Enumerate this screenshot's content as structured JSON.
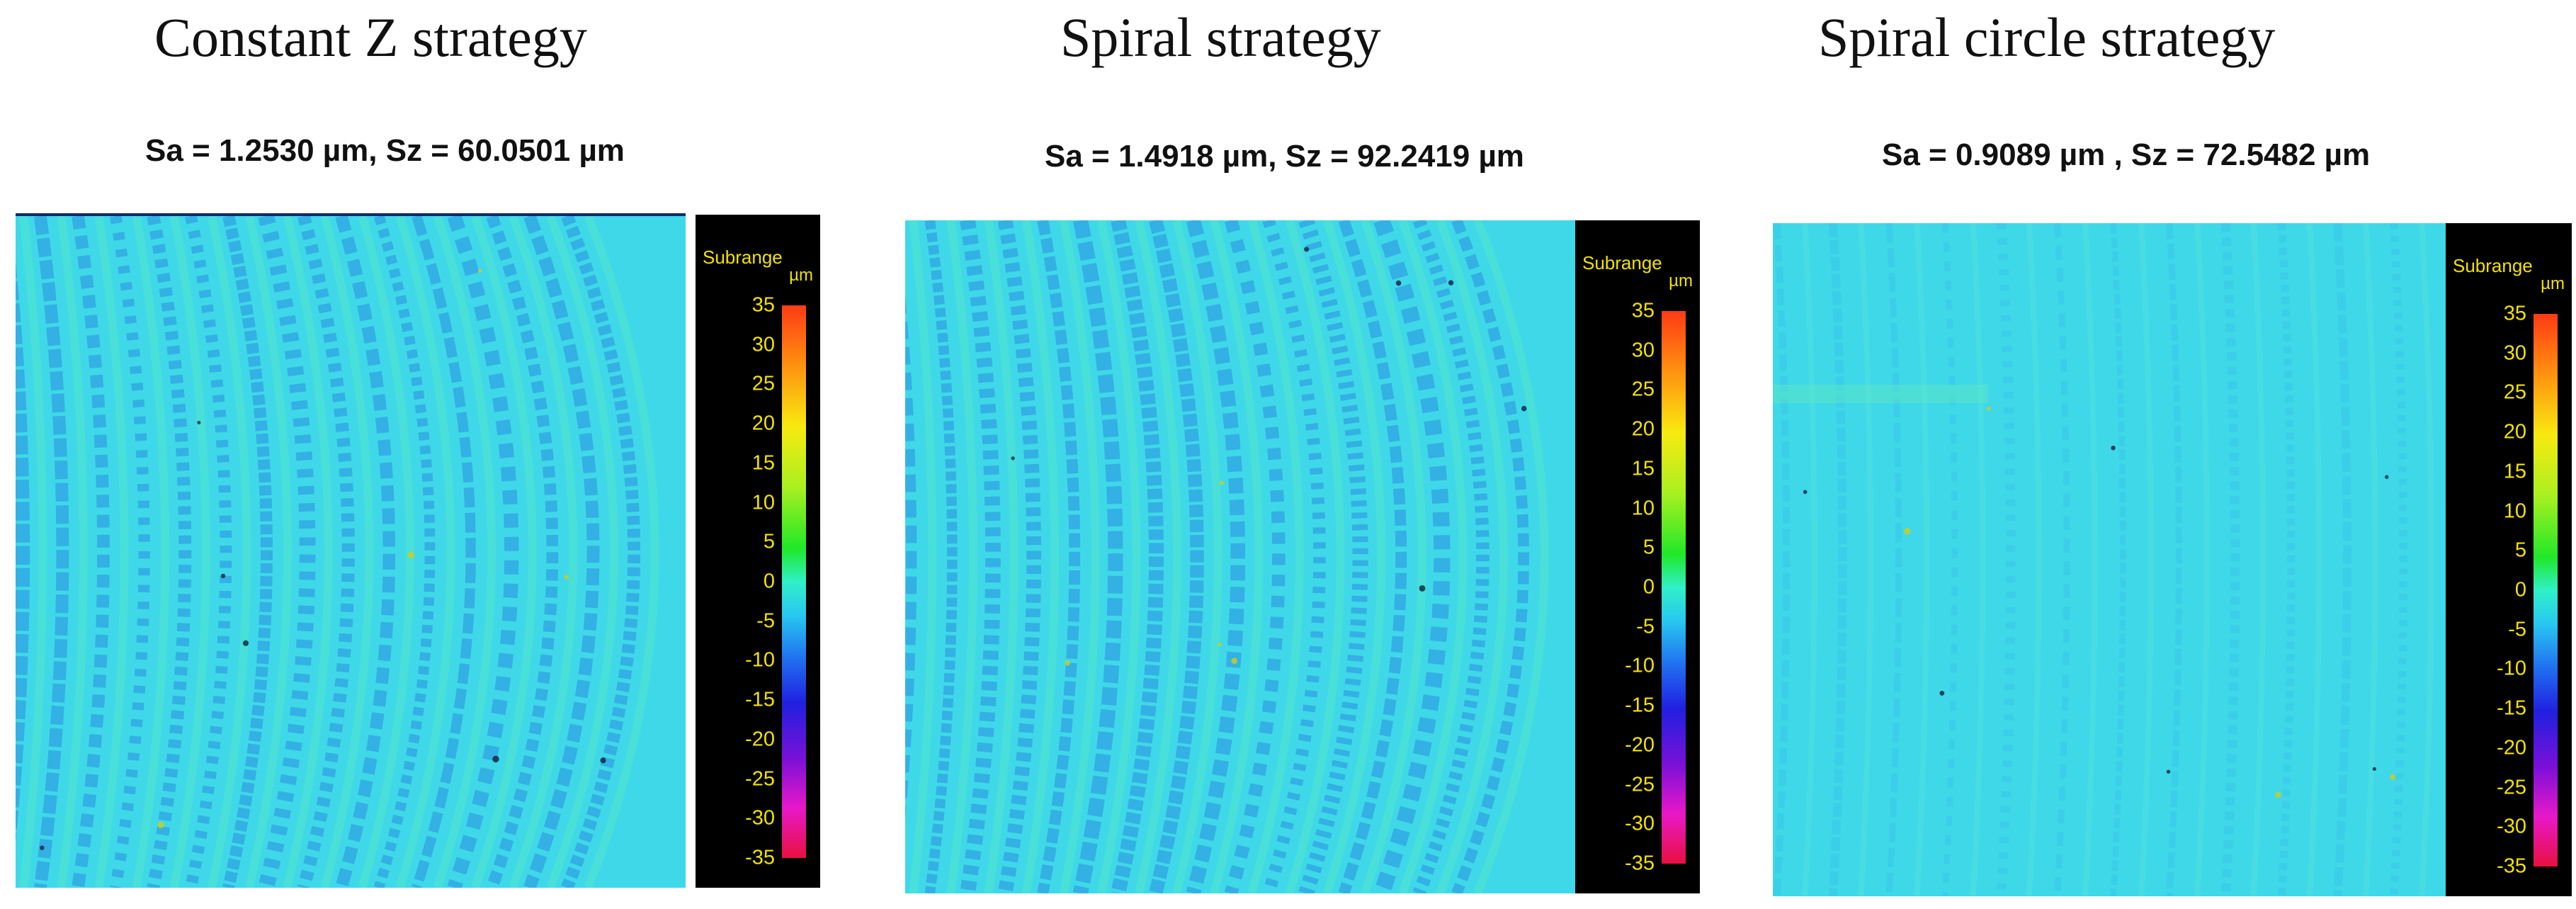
{
  "panels": [
    {
      "title": "Constant Z strategy",
      "stats": "Sa = 1.2530 µm, Sz = 60.0501 µm",
      "colorbar": {
        "label": "Subrange",
        "unit": "µm",
        "ticks": [
          "35",
          "30",
          "25",
          "20",
          "15",
          "10",
          "5",
          "0",
          "-5",
          "-10",
          "-15",
          "-20",
          "-25",
          "-30",
          "-35"
        ]
      },
      "texture": "strong-stripes",
      "colors": {
        "base": "#3fd8e8",
        "dark": "#2a8fe0",
        "light": "#52e8c8"
      }
    },
    {
      "title": "Spiral strategy",
      "stats": "Sa = 1.4918 µm, Sz = 92.2419 µm",
      "colorbar": {
        "label": "Subrange",
        "unit": "µm",
        "ticks": [
          "35",
          "30",
          "25",
          "20",
          "15",
          "10",
          "5",
          "0",
          "-5",
          "-10",
          "-15",
          "-20",
          "-25",
          "-30",
          "-35"
        ]
      },
      "texture": "strong-stripes",
      "colors": {
        "base": "#3fd8e8",
        "dark": "#2a8fe0",
        "light": "#52e8c8"
      }
    },
    {
      "title": "Spiral circle strategy",
      "stats": "Sa = 0.9089 µm , Sz = 72.5482 µm",
      "colorbar": {
        "label": "Subrange",
        "unit": "µm",
        "ticks": [
          "35",
          "30",
          "25",
          "20",
          "15",
          "10",
          "5",
          "0",
          "-5",
          "-10",
          "-15",
          "-20",
          "-25",
          "-30",
          "-35"
        ]
      },
      "texture": "faint-stripes",
      "colors": {
        "base": "#44dcec",
        "dark": "#34b4ea",
        "light": "#58e8d8"
      }
    }
  ]
}
